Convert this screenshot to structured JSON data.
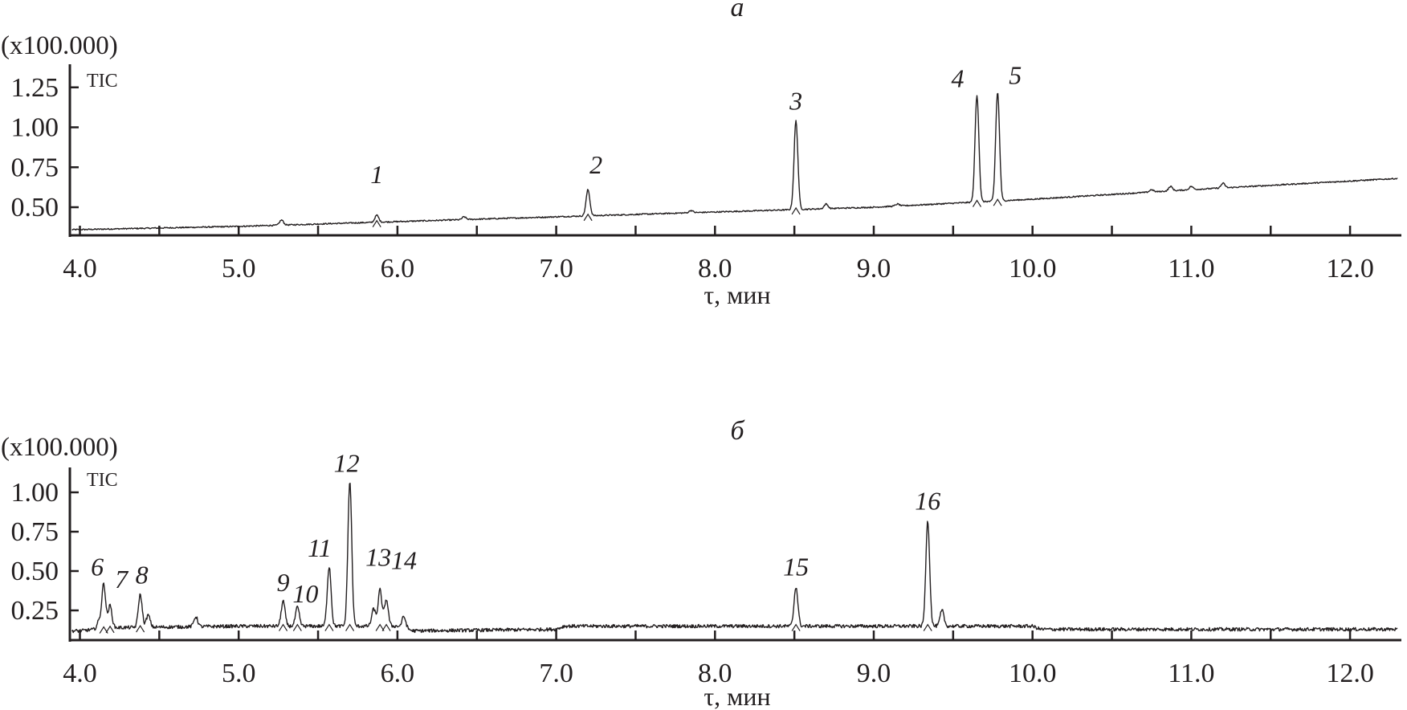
{
  "chart_data": [
    {
      "type": "line",
      "panel_label": "а",
      "multiplier_label": "(x100.000)",
      "series_label": "TIC",
      "xlabel": "τ, мин",
      "xlim": [
        3.94,
        12.32
      ],
      "ylim": [
        0.32,
        1.4
      ],
      "x_ticks": [
        "4.0",
        "5.0",
        "6.0",
        "7.0",
        "8.0",
        "9.0",
        "10.0",
        "11.0",
        "12.0"
      ],
      "y_ticks": [
        "0.50",
        "0.75",
        "1.00",
        "1.25"
      ],
      "grid": false,
      "color": "#231f20",
      "baseline": [
        [
          4.0,
          0.36
        ],
        [
          5.0,
          0.38
        ],
        [
          6.0,
          0.41
        ],
        [
          7.0,
          0.44
        ],
        [
          8.0,
          0.47
        ],
        [
          9.0,
          0.5
        ],
        [
          10.0,
          0.55
        ],
        [
          11.0,
          0.61
        ],
        [
          12.3,
          0.68
        ]
      ],
      "peaks": [
        {
          "label": "1",
          "t": 5.87,
          "height": 0.45
        },
        {
          "label": "2",
          "t": 7.2,
          "height": 0.61
        },
        {
          "label": "3",
          "t": 8.51,
          "height": 1.04
        },
        {
          "label": "4",
          "t": 9.65,
          "height": 1.2
        },
        {
          "label": "5",
          "t": 9.78,
          "height": 1.22
        }
      ],
      "minor_peaks": [
        [
          5.27,
          0.42
        ],
        [
          6.42,
          0.44
        ],
        [
          7.85,
          0.48
        ],
        [
          8.7,
          0.52
        ],
        [
          9.15,
          0.52
        ],
        [
          10.75,
          0.61
        ],
        [
          10.87,
          0.63
        ],
        [
          11.0,
          0.63
        ],
        [
          11.2,
          0.65
        ]
      ]
    },
    {
      "type": "line",
      "panel_label": "б",
      "multiplier_label": "(x100.000)",
      "series_label": "TIC",
      "xlabel": "τ, мин",
      "xlim": [
        3.94,
        12.32
      ],
      "ylim": [
        0.06,
        1.15
      ],
      "x_ticks": [
        "4.0",
        "5.0",
        "6.0",
        "7.0",
        "8.0",
        "9.0",
        "10.0",
        "11.0",
        "12.0"
      ],
      "y_ticks": [
        "0.25",
        "0.50",
        "0.75",
        "1.00"
      ],
      "grid": false,
      "color": "#231f20",
      "baseline": [
        [
          4.0,
          0.12
        ],
        [
          4.2,
          0.14
        ],
        [
          5.0,
          0.15
        ],
        [
          6.0,
          0.15
        ],
        [
          6.1,
          0.12
        ],
        [
          7.0,
          0.13
        ],
        [
          7.05,
          0.15
        ],
        [
          10.0,
          0.15
        ],
        [
          10.05,
          0.13
        ],
        [
          12.3,
          0.13
        ]
      ],
      "peaks": [
        {
          "label": "6",
          "t": 4.15,
          "height": 0.42
        },
        {
          "label": "7",
          "t": 4.19,
          "height": 0.28
        },
        {
          "label": "8",
          "t": 4.38,
          "height": 0.35
        },
        {
          "label": "9",
          "t": 5.28,
          "height": 0.31
        },
        {
          "label": "10",
          "t": 5.37,
          "height": 0.27
        },
        {
          "label": "11",
          "t": 5.57,
          "height": 0.53
        },
        {
          "label": "12",
          "t": 5.7,
          "height": 1.07
        },
        {
          "label": "13",
          "t": 5.89,
          "height": 0.38
        },
        {
          "label": "14",
          "t": 5.93,
          "height": 0.32
        },
        {
          "label": "15",
          "t": 8.51,
          "height": 0.4
        },
        {
          "label": "16",
          "t": 9.34,
          "height": 0.82
        }
      ],
      "minor_peaks": [
        [
          4.12,
          0.18
        ],
        [
          4.43,
          0.22
        ],
        [
          4.73,
          0.21
        ],
        [
          5.85,
          0.26
        ],
        [
          6.04,
          0.21
        ],
        [
          9.43,
          0.25
        ]
      ]
    }
  ]
}
